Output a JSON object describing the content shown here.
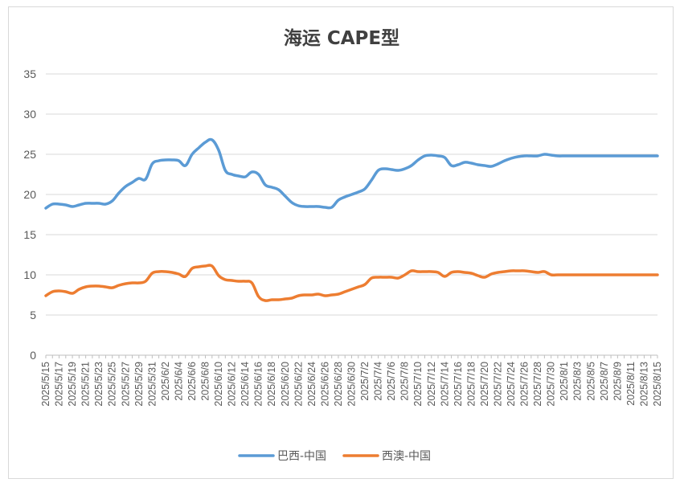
{
  "chart_data": {
    "type": "line",
    "title": "海运 CAPE型",
    "xlabel": "",
    "ylabel": "",
    "ylim": [
      0,
      35
    ],
    "yticks": [
      0,
      5,
      10,
      15,
      20,
      25,
      30,
      35
    ],
    "grid": "horizontal",
    "legend_position": "bottom",
    "x": [
      "2025/5/15",
      "2025/5/16",
      "2025/5/17",
      "2025/5/18",
      "2025/5/19",
      "2025/5/20",
      "2025/5/21",
      "2025/5/22",
      "2025/5/23",
      "2025/5/24",
      "2025/5/25",
      "2025/5/26",
      "2025/5/27",
      "2025/5/28",
      "2025/5/29",
      "2025/5/30",
      "2025/5/31",
      "2025/6/1",
      "2025/6/2",
      "2025/6/3",
      "2025/6/4",
      "2025/6/5",
      "2025/6/6",
      "2025/6/7",
      "2025/6/8",
      "2025/6/9",
      "2025/6/10",
      "2025/6/11",
      "2025/6/12",
      "2025/6/13",
      "2025/6/14",
      "2025/6/15",
      "2025/6/16",
      "2025/6/17",
      "2025/6/18",
      "2025/6/19",
      "2025/6/20",
      "2025/6/21",
      "2025/6/22",
      "2025/6/23",
      "2025/6/24",
      "2025/6/25",
      "2025/6/26",
      "2025/6/27",
      "2025/6/28",
      "2025/6/29",
      "2025/6/30",
      "2025/7/1",
      "2025/7/2",
      "2025/7/3",
      "2025/7/4",
      "2025/7/5",
      "2025/7/6",
      "2025/7/7",
      "2025/7/8",
      "2025/7/9",
      "2025/7/10",
      "2025/7/11",
      "2025/7/12",
      "2025/7/13",
      "2025/7/14",
      "2025/7/15",
      "2025/7/16",
      "2025/7/17",
      "2025/7/18",
      "2025/7/19",
      "2025/7/20",
      "2025/7/21",
      "2025/7/22",
      "2025/7/23",
      "2025/7/24",
      "2025/7/25",
      "2025/7/26",
      "2025/7/27",
      "2025/7/28",
      "2025/7/29",
      "2025/7/30",
      "2025/7/31",
      "2025/8/1",
      "2025/8/2",
      "2025/8/3",
      "2025/8/4",
      "2025/8/5",
      "2025/8/6",
      "2025/8/7",
      "2025/8/8",
      "2025/8/9",
      "2025/8/10",
      "2025/8/11",
      "2025/8/12",
      "2025/8/13",
      "2025/8/14",
      "2025/8/15"
    ],
    "series": [
      {
        "name": "巴西-中国",
        "color": "#5b9bd5",
        "values": [
          18.3,
          18.8,
          18.8,
          18.7,
          18.5,
          18.7,
          18.9,
          18.9,
          18.9,
          18.8,
          19.2,
          20.2,
          21.0,
          21.5,
          22.0,
          21.9,
          23.8,
          24.2,
          24.3,
          24.3,
          24.2,
          23.6,
          25.0,
          25.8,
          26.5,
          26.8,
          25.5,
          23.0,
          22.5,
          22.3,
          22.2,
          22.8,
          22.5,
          21.2,
          20.9,
          20.6,
          19.8,
          19.0,
          18.6,
          18.5,
          18.5,
          18.5,
          18.4,
          18.4,
          19.3,
          19.7,
          20.0,
          20.3,
          20.7,
          21.8,
          23.0,
          23.2,
          23.1,
          23.0,
          23.2,
          23.6,
          24.3,
          24.8,
          24.9,
          24.8,
          24.6,
          23.6,
          23.7,
          24.0,
          23.9,
          23.7,
          23.6,
          23.5,
          23.8,
          24.2,
          24.5,
          24.7,
          24.8,
          24.8,
          24.8,
          25.0,
          24.9,
          24.8,
          24.8,
          24.8,
          24.8,
          24.8,
          24.8,
          24.8,
          24.8,
          24.8,
          24.8,
          24.8,
          24.8,
          24.8,
          24.8,
          24.8,
          24.8
        ]
      },
      {
        "name": "西澳-中国",
        "color": "#ed7d31",
        "values": [
          7.4,
          7.9,
          8.0,
          7.9,
          7.7,
          8.2,
          8.5,
          8.6,
          8.6,
          8.5,
          8.4,
          8.7,
          8.9,
          9.0,
          9.0,
          9.2,
          10.2,
          10.4,
          10.4,
          10.3,
          10.1,
          9.8,
          10.8,
          11.0,
          11.1,
          11.1,
          9.9,
          9.4,
          9.3,
          9.2,
          9.2,
          9.0,
          7.3,
          6.8,
          6.9,
          6.9,
          7.0,
          7.1,
          7.4,
          7.5,
          7.5,
          7.6,
          7.4,
          7.5,
          7.6,
          7.9,
          8.2,
          8.5,
          8.8,
          9.6,
          9.7,
          9.7,
          9.7,
          9.6,
          10.0,
          10.5,
          10.4,
          10.4,
          10.4,
          10.3,
          9.8,
          10.3,
          10.4,
          10.3,
          10.2,
          9.9,
          9.7,
          10.1,
          10.3,
          10.4,
          10.5,
          10.5,
          10.5,
          10.4,
          10.3,
          10.4,
          10.0,
          10.0,
          10.0,
          10.0,
          10.0,
          10.0,
          10.0,
          10.0,
          10.0,
          10.0,
          10.0,
          10.0,
          10.0,
          10.0,
          10.0,
          10.0,
          10.0
        ]
      }
    ]
  }
}
